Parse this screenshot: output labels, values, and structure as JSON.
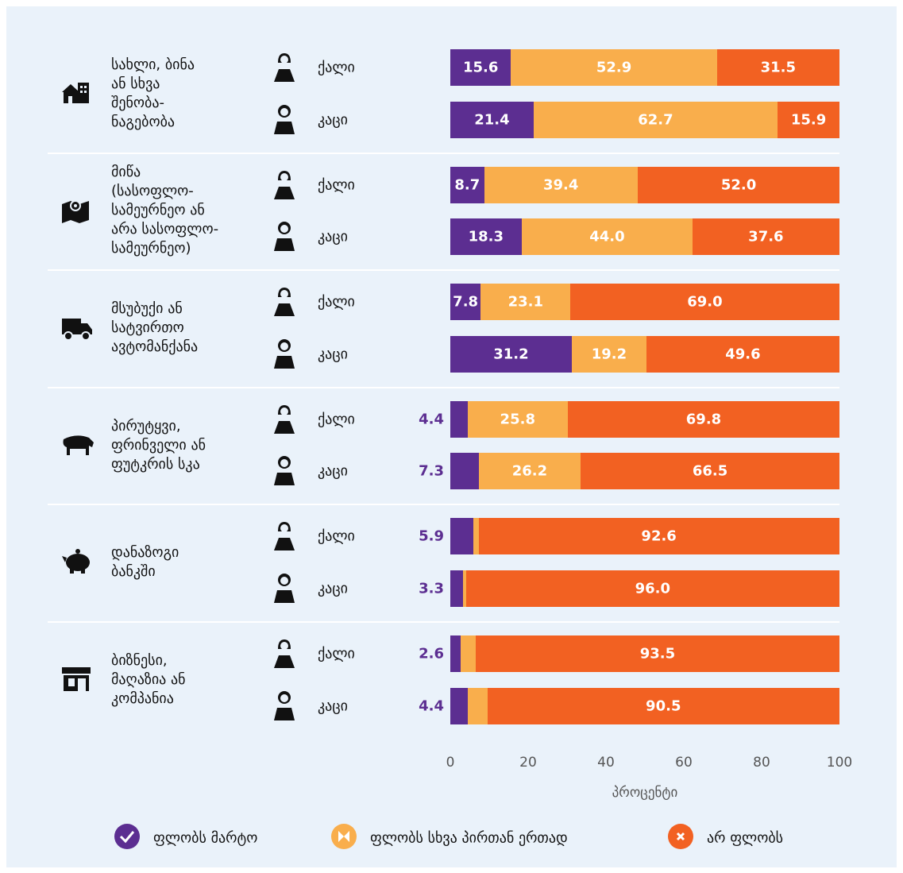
{
  "chart_data": {
    "type": "bar",
    "orientation": "horizontal",
    "stacked": true,
    "groups": [
      [
        "სახლი, ბინა",
        "ან სხვა",
        "შენობა-",
        "ნაგებობა"
      ],
      [
        "მიწა",
        "(სასოფლო-",
        "სამეურნეო ან",
        "არა სასოფლო-",
        "სამეურნეო)"
      ],
      [
        "მსუბუქი ან",
        "სატვირთო",
        "ავტომანქანა"
      ],
      [
        "პირუტყვი,",
        "ფრინველი ან",
        "ფუტკრის სკა"
      ],
      [
        "დანაზოგი",
        "ბანკში"
      ],
      [
        "ბიზნესი,",
        "მაღაზია ან",
        "კომპანია"
      ]
    ],
    "categories": [
      "ქალი",
      "კაცი",
      "ქალი",
      "კაცი",
      "ქალი",
      "კაცი",
      "ქალი",
      "კაცი",
      "ქალი",
      "კაცი",
      "ქალი",
      "კაცი"
    ],
    "series": [
      {
        "name": "ფლობს მარტო",
        "color": "#5c2e91",
        "values": [
          15.6,
          21.4,
          8.7,
          18.3,
          7.8,
          31.2,
          4.4,
          7.3,
          5.9,
          3.3,
          2.6,
          4.4
        ],
        "value_labels": [
          "15.6",
          "21.4",
          "8.7",
          "18.3",
          "7.8",
          "31.2",
          "4.4",
          "7.3",
          "5.9",
          "3.3",
          "2.6",
          "4.4"
        ]
      },
      {
        "name": "ფლობს სხვა პირთან ერთად",
        "color": "#f9ae4c",
        "values": [
          52.9,
          62.7,
          39.4,
          44.0,
          23.1,
          19.2,
          25.8,
          26.2,
          1.4,
          0.7,
          3.9,
          5.1
        ],
        "value_labels": [
          "52.9",
          "62.7",
          "39.4",
          "44.0",
          "23.1",
          "19.2",
          "25.8",
          "26.2",
          "1.4",
          "0.7",
          "3.9",
          "5.1"
        ]
      },
      {
        "name": "არ ფლობს",
        "color": "#f26122",
        "values": [
          31.5,
          15.9,
          52.0,
          37.6,
          69.0,
          49.6,
          69.8,
          66.5,
          92.6,
          96.0,
          93.5,
          90.5
        ],
        "value_labels": [
          "31.5",
          "15.9",
          "52.0",
          "37.6",
          "69.0",
          "49.6",
          "69.8",
          "66.5",
          "92.6",
          "96.0",
          "93.5",
          "90.5"
        ]
      }
    ],
    "xlabel": "პროცენტი",
    "xlim": [
      0,
      100
    ],
    "xticks": [
      0,
      20,
      40,
      60,
      80,
      100
    ],
    "grid": false,
    "legend": "bottom"
  }
}
